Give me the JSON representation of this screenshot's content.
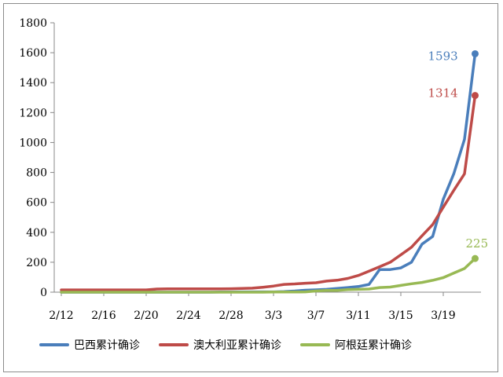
{
  "chart_data": {
    "type": "line",
    "title": "",
    "xlabel": "",
    "ylabel": "",
    "ylim": [
      0,
      1800
    ],
    "yticks": [
      0,
      200,
      400,
      600,
      800,
      1000,
      1200,
      1400,
      1600,
      1800
    ],
    "x_ticks": [
      "2/12",
      "2/16",
      "2/20",
      "2/24",
      "2/28",
      "3/3",
      "3/7",
      "3/11",
      "3/15",
      "3/19"
    ],
    "x": [
      "2/12",
      "2/13",
      "2/14",
      "2/15",
      "2/16",
      "2/17",
      "2/18",
      "2/19",
      "2/20",
      "2/21",
      "2/22",
      "2/23",
      "2/24",
      "2/25",
      "2/26",
      "2/27",
      "2/28",
      "2/29",
      "3/1",
      "3/2",
      "3/3",
      "3/4",
      "3/5",
      "3/6",
      "3/7",
      "3/8",
      "3/9",
      "3/10",
      "3/11",
      "3/12",
      "3/13",
      "3/14",
      "3/15",
      "3/16",
      "3/17",
      "3/18",
      "3/19",
      "3/20",
      "3/21",
      "3/22"
    ],
    "grid": false,
    "legend_position": "bottom",
    "series": [
      {
        "name": "巴西累计确诊",
        "color": "#4a7ebb",
        "values": [
          0,
          0,
          0,
          0,
          0,
          0,
          0,
          0,
          0,
          0,
          0,
          0,
          0,
          0,
          0,
          1,
          1,
          2,
          2,
          2,
          2,
          4,
          8,
          13,
          16,
          19,
          25,
          31,
          38,
          52,
          151,
          151,
          162,
          200,
          321,
          372,
          621,
          793,
          1021,
          1593
        ],
        "end_label": "1593"
      },
      {
        "name": "澳大利亚累计确诊",
        "color": "#be4b48",
        "values": [
          15,
          15,
          15,
          15,
          15,
          15,
          15,
          15,
          15,
          21,
          22,
          22,
          22,
          22,
          22,
          22,
          23,
          25,
          27,
          33,
          41,
          52,
          55,
          60,
          63,
          74,
          80,
          92,
          112,
          140,
          170,
          200,
          250,
          300,
          377,
          452,
          568,
          681,
          791,
          1314
        ],
        "end_label": "1314"
      },
      {
        "name": "阿根廷累计确诊",
        "color": "#98b954",
        "values": [
          0,
          0,
          0,
          0,
          0,
          0,
          0,
          0,
          0,
          0,
          0,
          0,
          0,
          0,
          0,
          0,
          0,
          0,
          0,
          0,
          1,
          1,
          1,
          2,
          8,
          12,
          12,
          17,
          19,
          21,
          31,
          34,
          45,
          56,
          65,
          79,
          97,
          128,
          158,
          225
        ],
        "end_label": "225"
      }
    ]
  }
}
